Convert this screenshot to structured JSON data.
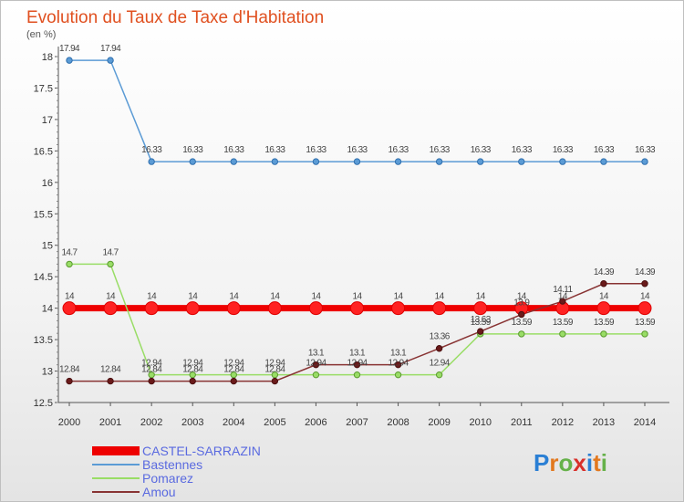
{
  "chart_data": {
    "type": "line",
    "title": "Evolution du Taux de Taxe d'Habitation",
    "ylabel": "(en %)",
    "xlabel": "",
    "ylim": [
      12.5,
      18
    ],
    "yticks": [
      "12.5",
      "13",
      "13.5",
      "14",
      "14.5",
      "15",
      "15.5",
      "16",
      "16.5",
      "17",
      "17.5",
      "18"
    ],
    "x": [
      "2000",
      "2001",
      "2002",
      "2003",
      "2004",
      "2005",
      "2006",
      "2007",
      "2008",
      "2009",
      "2010",
      "2011",
      "2012",
      "2013",
      "2014"
    ],
    "grid": false,
    "legend_position": "bottom-left",
    "series": [
      {
        "name": "CASTEL-SARRAZIN",
        "color": "#ee0000",
        "emphasis": "thick",
        "values": [
          14,
          14,
          14,
          14,
          14,
          14,
          14,
          14,
          14,
          14,
          14,
          14,
          14,
          14,
          14
        ],
        "labels": [
          "14",
          "14",
          "14",
          "14",
          "14",
          "14",
          "14",
          "14",
          "14",
          "14",
          "14",
          "14",
          "14",
          "14",
          "14"
        ]
      },
      {
        "name": "Bastennes",
        "color": "#5b9bd5",
        "values": [
          17.94,
          17.94,
          16.33,
          16.33,
          16.33,
          16.33,
          16.33,
          16.33,
          16.33,
          16.33,
          16.33,
          16.33,
          16.33,
          16.33,
          16.33
        ],
        "labels": [
          "17.94",
          "17.94",
          "16.33",
          "16.33",
          "16.33",
          "16.33",
          "16.33",
          "16.33",
          "16.33",
          "16.33",
          "16.33",
          "16.33",
          "16.33",
          "16.33",
          "16.33"
        ]
      },
      {
        "name": "Pomarez",
        "color": "#99dd66",
        "values": [
          14.7,
          14.7,
          12.94,
          12.94,
          12.94,
          12.94,
          12.94,
          12.94,
          12.94,
          12.94,
          13.59,
          13.59,
          13.59,
          13.59,
          13.59
        ],
        "labels": [
          "14.7",
          "14.7",
          "12.94",
          "12.94",
          "12.94",
          "12.94",
          "12.94",
          "12.94",
          "12.94",
          "12.94",
          "13.59",
          "13.59",
          "13.59",
          "13.59",
          "13.59"
        ]
      },
      {
        "name": "Amou",
        "color": "#883333",
        "values": [
          12.84,
          12.84,
          12.84,
          12.84,
          12.84,
          12.84,
          13.1,
          13.1,
          13.1,
          13.36,
          13.63,
          13.9,
          14.11,
          14.39,
          14.39
        ],
        "labels": [
          "12.84",
          "12.84",
          "12.84",
          "12.84",
          "12.84",
          "12.84",
          "13.1",
          "13.1",
          "13.1",
          "13.36",
          "13.63",
          "13.9",
          "14.11",
          "14.39",
          "14.39"
        ]
      }
    ]
  },
  "logo": {
    "letters": [
      "P",
      "r",
      "o",
      "x",
      "i",
      "t",
      "i"
    ]
  }
}
